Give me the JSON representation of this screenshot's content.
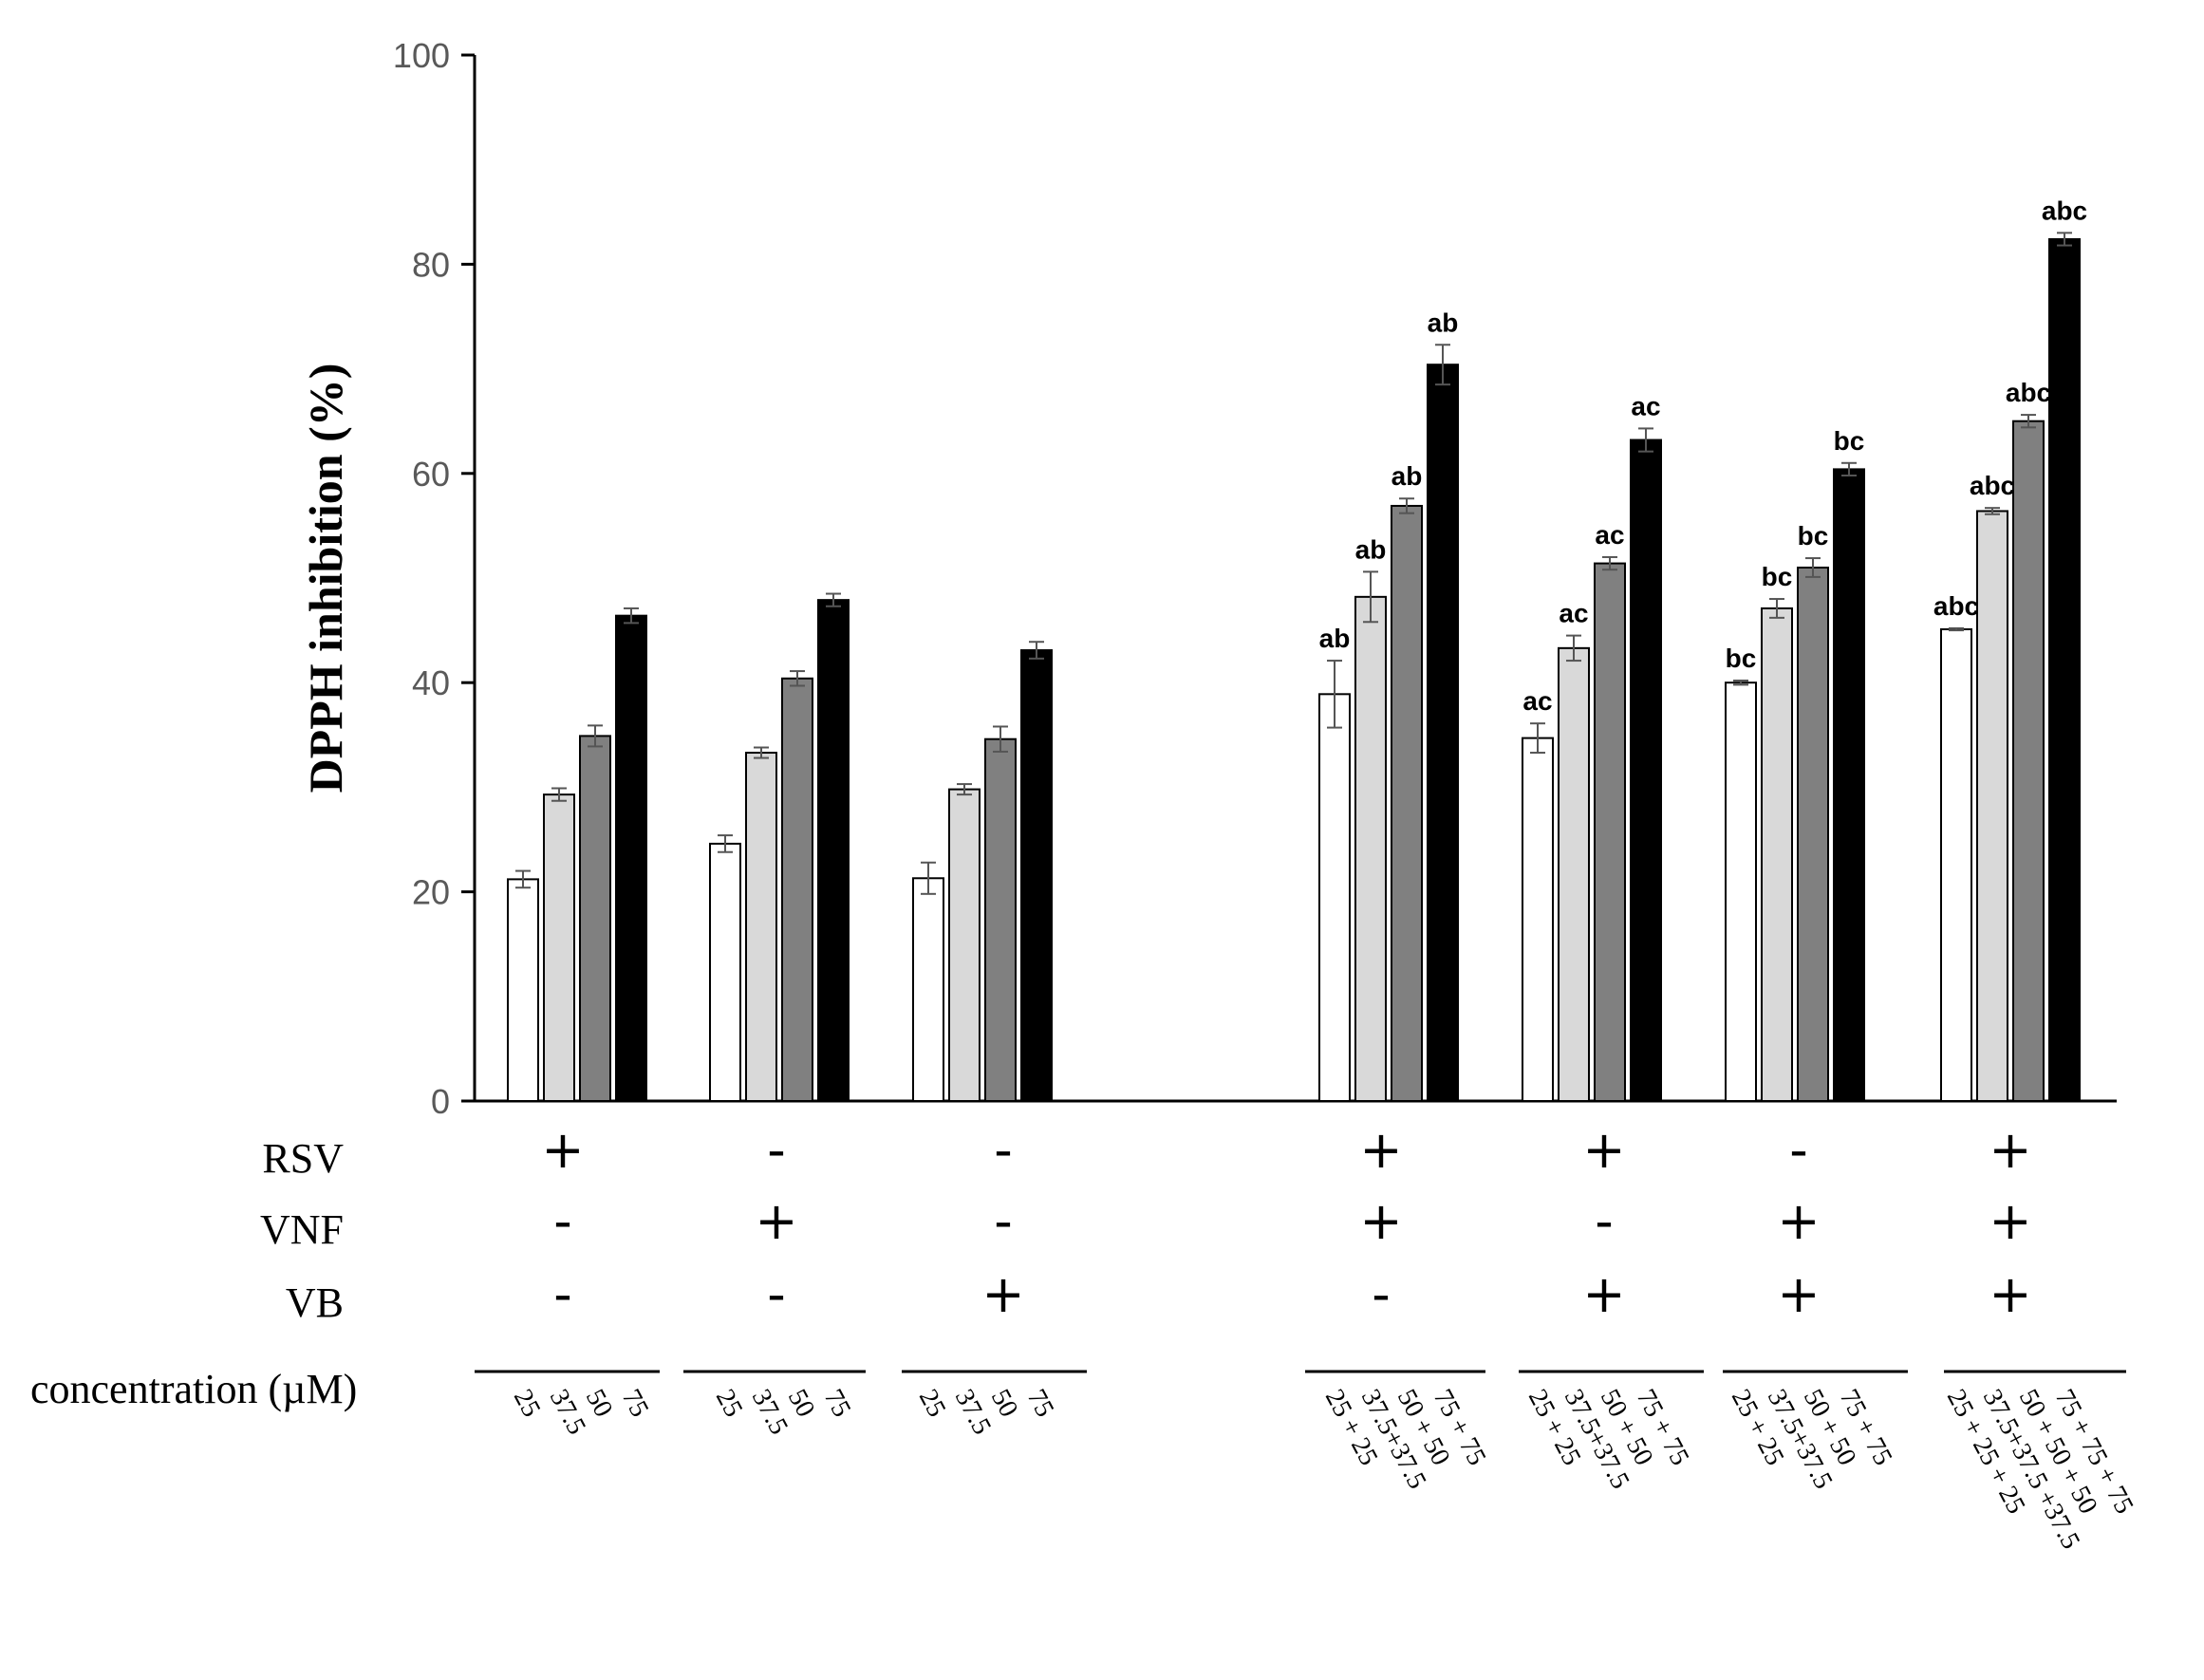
{
  "chart_data": {
    "type": "bar",
    "title": "",
    "xlabel": "",
    "ylabel": "DPPH inhibition (%)",
    "ylim": [
      0,
      100
    ],
    "yticks": [
      0,
      20,
      40,
      60,
      80,
      100
    ],
    "grid": false,
    "series_colors": [
      "#ffffff",
      "#d9d9d9",
      "#808080",
      "#000000"
    ],
    "groups": [
      {
        "rsv": "+",
        "vnf": "-",
        "vb": "-",
        "values": [
          21.2,
          29.3,
          34.9,
          46.4
        ],
        "errors": [
          0.8,
          0.6,
          1.0,
          0.7
        ],
        "sig": [
          "",
          "",
          "",
          ""
        ],
        "conc": [
          "25",
          "37.5",
          "50",
          "75"
        ]
      },
      {
        "rsv": "-",
        "vnf": "+",
        "vb": "-",
        "values": [
          24.6,
          33.3,
          40.4,
          47.9
        ],
        "errors": [
          0.8,
          0.5,
          0.7,
          0.6
        ],
        "sig": [
          "",
          "",
          "",
          ""
        ],
        "conc": [
          "25",
          "37.5",
          "50",
          "75"
        ]
      },
      {
        "rsv": "-",
        "vnf": "-",
        "vb": "+",
        "values": [
          21.3,
          29.8,
          34.6,
          43.1
        ],
        "errors": [
          1.5,
          0.5,
          1.2,
          0.8
        ],
        "sig": [
          "",
          "",
          "",
          ""
        ],
        "conc": [
          "25",
          "37.5",
          "50",
          "75"
        ]
      },
      {
        "rsv": "+",
        "vnf": "+",
        "vb": "-",
        "values": [
          38.9,
          48.2,
          56.9,
          70.4
        ],
        "errors": [
          3.2,
          2.4,
          0.7,
          1.9
        ],
        "sig": [
          "ab",
          "ab",
          "ab",
          "ab"
        ],
        "conc": [
          "25 + 25",
          "37.5+37.5",
          "50 + 50",
          "75 + 75"
        ]
      },
      {
        "rsv": "+",
        "vnf": "-",
        "vb": "+",
        "values": [
          34.7,
          43.3,
          51.4,
          63.2
        ],
        "errors": [
          1.4,
          1.2,
          0.6,
          1.1
        ],
        "sig": [
          "ac",
          "ac",
          "ac",
          "ac"
        ],
        "conc": [
          "25 + 25",
          "37.5+37.5",
          "50 + 50",
          "75 + 75"
        ]
      },
      {
        "rsv": "-",
        "vnf": "+",
        "vb": "+",
        "values": [
          40.0,
          47.1,
          51.0,
          60.4
        ],
        "errors": [
          0.2,
          0.9,
          0.9,
          0.6
        ],
        "sig": [
          "bc",
          "bc",
          "bc",
          "bc"
        ],
        "conc": [
          "25 + 25",
          "37.5+37.5",
          "50 + 50",
          "75 + 75"
        ]
      },
      {
        "rsv": "+",
        "vnf": "+",
        "vb": "+",
        "values": [
          45.1,
          56.4,
          65.0,
          82.4
        ],
        "errors": [
          0.1,
          0.3,
          0.6,
          0.6
        ],
        "sig": [
          "abc",
          "abc",
          "abc",
          "abc"
        ],
        "conc": [
          "25 + 25 + 25",
          "37.5+37.5 +37.5",
          "50 + 50 + 50",
          "75 + 75 + 75"
        ]
      }
    ],
    "row_labels": {
      "rsv": "RSV",
      "vnf": "VNF",
      "vb": "VB",
      "concentration": "concentration (µM)"
    }
  }
}
